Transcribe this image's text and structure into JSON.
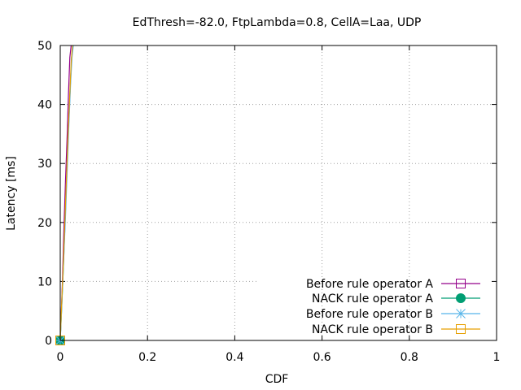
{
  "chart_data": {
    "type": "line",
    "title": "EdThresh=-82.0, FtpLambda=0.8, CellA=Laa, UDP",
    "xlabel": "CDF",
    "ylabel": "Latency [ms]",
    "xlim": [
      0,
      1
    ],
    "ylim": [
      0,
      50
    ],
    "x_ticks": [
      0,
      0.2,
      0.4,
      0.6,
      0.8,
      1
    ],
    "x_tick_labels": [
      "0",
      "0.2",
      "0.4",
      "0.6",
      "0.8",
      "1"
    ],
    "y_ticks": [
      0,
      10,
      20,
      30,
      40,
      50
    ],
    "y_tick_labels": [
      "0",
      "10",
      "20",
      "30",
      "40",
      "50"
    ],
    "grid": true,
    "legend_position": "bottom-right",
    "series": [
      {
        "name": "Before rule operator A",
        "color": "#94008b",
        "marker": "open-square",
        "points": [
          [
            0,
            0
          ],
          [
            0.002,
            4
          ],
          [
            0.005,
            10
          ],
          [
            0.008,
            18
          ],
          [
            0.012,
            27
          ],
          [
            0.016,
            35
          ],
          [
            0.019,
            42
          ],
          [
            0.022,
            48
          ],
          [
            0.025,
            50
          ]
        ]
      },
      {
        "name": "NACK rule operator A",
        "color": "#009e73",
        "marker": "filled-circle",
        "points": [
          [
            0,
            0
          ],
          [
            0.003,
            5
          ],
          [
            0.007,
            12
          ],
          [
            0.011,
            20
          ],
          [
            0.015,
            28
          ],
          [
            0.019,
            36
          ],
          [
            0.023,
            43
          ],
          [
            0.026,
            48
          ],
          [
            0.029,
            50
          ]
        ]
      },
      {
        "name": "Before rule operator B",
        "color": "#56b4e9",
        "marker": "asterisk",
        "points": [
          [
            0,
            0
          ],
          [
            0.003,
            5
          ],
          [
            0.007,
            12
          ],
          [
            0.012,
            21
          ],
          [
            0.016,
            29
          ],
          [
            0.02,
            37
          ],
          [
            0.024,
            44
          ],
          [
            0.027,
            48
          ],
          [
            0.03,
            50
          ]
        ]
      },
      {
        "name": "NACK rule operator B",
        "color": "#e69f00",
        "marker": "open-square",
        "points": [
          [
            0,
            0
          ],
          [
            0.002,
            4
          ],
          [
            0.006,
            11
          ],
          [
            0.01,
            19
          ],
          [
            0.014,
            27
          ],
          [
            0.018,
            35
          ],
          [
            0.022,
            42
          ],
          [
            0.025,
            47
          ],
          [
            0.028,
            50
          ]
        ]
      }
    ]
  }
}
